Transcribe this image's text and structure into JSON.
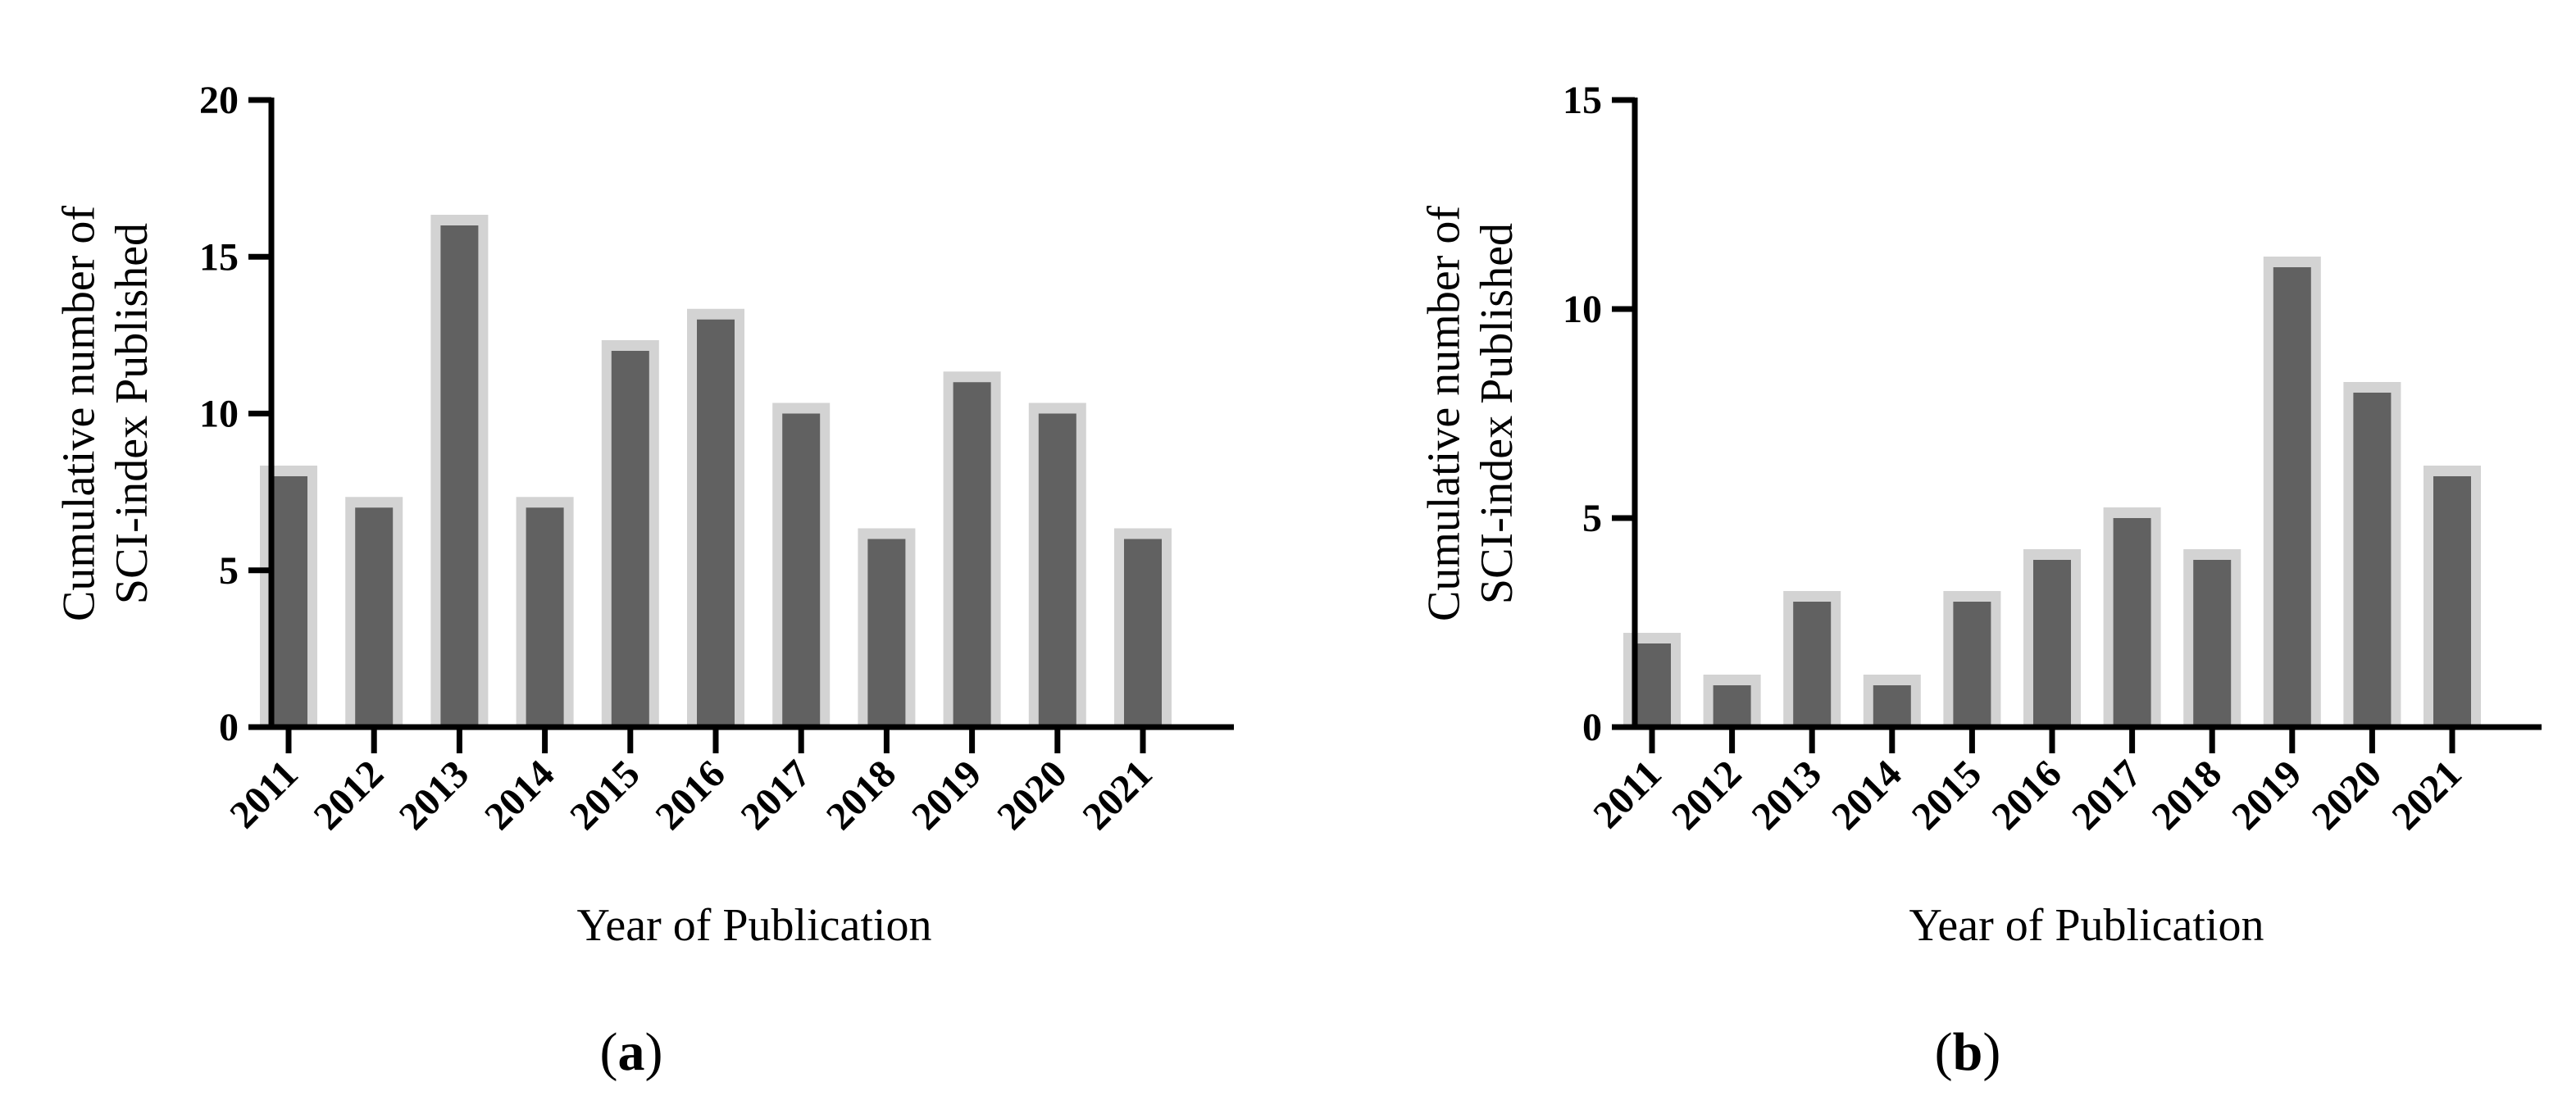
{
  "chart_data": [
    {
      "type": "bar",
      "panel_label": "a",
      "categories": [
        "2011",
        "2012",
        "2013",
        "2014",
        "2015",
        "2016",
        "2017",
        "2018",
        "2019",
        "2020",
        "2021"
      ],
      "values": [
        8,
        7,
        16,
        7,
        12,
        13,
        10,
        6,
        11,
        10,
        6
      ],
      "ylabel_line1": "Cumulative number of",
      "ylabel_line2": "SCI-index Published",
      "xlabel": "Year of Publication",
      "ylim": [
        0,
        20
      ],
      "yticks": [
        0,
        5,
        10,
        15,
        20
      ],
      "bar_color": "#616161",
      "bar_outline_color": "#d3d3d3",
      "grid": false
    },
    {
      "type": "bar",
      "panel_label": "b",
      "categories": [
        "2011",
        "2012",
        "2013",
        "2014",
        "2015",
        "2016",
        "2017",
        "2018",
        "2019",
        "2020",
        "2021"
      ],
      "values": [
        2,
        1,
        3,
        1,
        3,
        4,
        5,
        4,
        11,
        8,
        6
      ],
      "ylabel_line1": "Cumulative number of",
      "ylabel_line2": "SCI-index Published",
      "xlabel": "Year of Publication",
      "ylim": [
        0,
        15
      ],
      "yticks": [
        0,
        5,
        10,
        15
      ],
      "bar_color": "#616161",
      "bar_outline_color": "#d3d3d3",
      "grid": false
    }
  ]
}
